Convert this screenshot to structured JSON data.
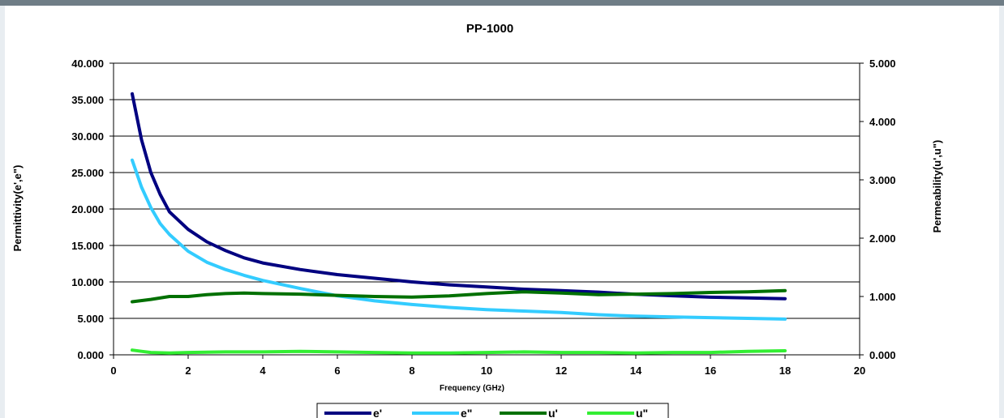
{
  "chart_data": {
    "type": "line",
    "title": "PP-1000",
    "xlabel": "Frequency (GHz)",
    "ylabel_left": "Permittivity(e',e\")",
    "ylabel_right": "Permeability(u',u\")",
    "xlim": [
      0,
      20
    ],
    "ylim_left": [
      0,
      40
    ],
    "ylim_right": [
      0,
      5
    ],
    "x_ticks": [
      "0",
      "2",
      "4",
      "6",
      "8",
      "10",
      "12",
      "14",
      "16",
      "18",
      "20"
    ],
    "y_left_ticks": [
      "0.000",
      "5.000",
      "10.000",
      "15.000",
      "20.000",
      "25.000",
      "30.000",
      "35.000",
      "40.000"
    ],
    "y_right_ticks": [
      "0.000",
      "1.000",
      "2.000",
      "3.000",
      "4.000",
      "5.000"
    ],
    "grid": "horizontal",
    "legend_position": "bottom",
    "series": [
      {
        "name": "e'",
        "axis": "left",
        "color": "#000080",
        "x": [
          0.5,
          0.75,
          1,
          1.25,
          1.5,
          2,
          2.5,
          3,
          3.5,
          4,
          5,
          6,
          7,
          8,
          9,
          10,
          11,
          12,
          13,
          14,
          15,
          16,
          17,
          18
        ],
        "values": [
          35.8,
          29.5,
          25.0,
          22.0,
          19.6,
          17.2,
          15.5,
          14.3,
          13.3,
          12.6,
          11.7,
          11.0,
          10.5,
          10.0,
          9.6,
          9.3,
          9.0,
          8.8,
          8.6,
          8.3,
          8.1,
          7.9,
          7.8,
          7.7
        ]
      },
      {
        "name": "e\"",
        "axis": "left",
        "color": "#33ccff",
        "x": [
          0.5,
          0.75,
          1,
          1.25,
          1.5,
          2,
          2.5,
          3,
          3.5,
          4,
          5,
          6,
          7,
          8,
          9,
          10,
          11,
          12,
          13,
          14,
          15,
          16,
          17,
          18
        ],
        "values": [
          26.7,
          23.0,
          20.2,
          18.0,
          16.5,
          14.2,
          12.7,
          11.7,
          10.9,
          10.2,
          9.1,
          8.1,
          7.4,
          6.9,
          6.5,
          6.2,
          6.0,
          5.8,
          5.5,
          5.3,
          5.2,
          5.1,
          5.0,
          4.9
        ]
      },
      {
        "name": "u'",
        "axis": "right",
        "color": "#007000",
        "x": [
          0.5,
          1,
          1.5,
          2,
          2.5,
          3,
          3.5,
          4,
          5,
          6,
          7,
          8,
          9,
          10,
          11,
          12,
          13,
          14,
          15,
          16,
          17,
          18
        ],
        "values": [
          0.91,
          0.95,
          1.0,
          1.0,
          1.03,
          1.05,
          1.06,
          1.05,
          1.04,
          1.02,
          1.0,
          0.99,
          1.01,
          1.05,
          1.08,
          1.06,
          1.03,
          1.04,
          1.05,
          1.07,
          1.08,
          1.1
        ]
      },
      {
        "name": "u\"",
        "axis": "right",
        "color": "#33ee33",
        "x": [
          0.5,
          0.75,
          1,
          1.5,
          2,
          3,
          4,
          5,
          6,
          7,
          8,
          9,
          10,
          11,
          12,
          13,
          14,
          15,
          16,
          17,
          18
        ],
        "values": [
          0.08,
          0.06,
          0.04,
          0.03,
          0.04,
          0.05,
          0.05,
          0.06,
          0.05,
          0.04,
          0.03,
          0.03,
          0.04,
          0.05,
          0.04,
          0.04,
          0.03,
          0.04,
          0.04,
          0.06,
          0.07
        ]
      }
    ]
  }
}
